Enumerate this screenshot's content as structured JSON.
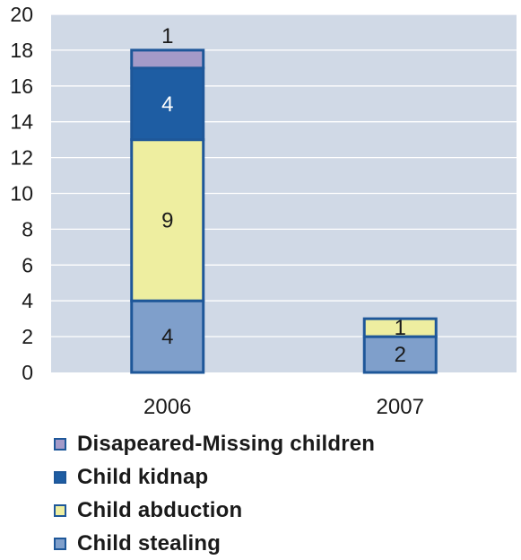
{
  "chart_data": {
    "type": "bar",
    "stacked": true,
    "categories": [
      "2006",
      "2007"
    ],
    "series": [
      {
        "name": "Child stealing",
        "values": [
          4,
          2
        ],
        "color": "#7f9fcb"
      },
      {
        "name": "Child abduction",
        "values": [
          9,
          1
        ],
        "color": "#eeeea0"
      },
      {
        "name": "Child kidnap",
        "values": [
          4,
          0
        ],
        "color": "#1e5da3"
      },
      {
        "name": "Disapeared-Missing children",
        "values": [
          1,
          0
        ],
        "color": "#a49ac8"
      }
    ],
    "data_labels": [
      {
        "category": "2006",
        "series": "Child stealing",
        "text": "4"
      },
      {
        "category": "2006",
        "series": "Child abduction",
        "text": "9"
      },
      {
        "category": "2006",
        "series": "Child kidnap",
        "text": "4"
      },
      {
        "category": "2006",
        "series": "Disapeared-Missing children",
        "text": "1"
      },
      {
        "category": "2007",
        "series": "Child stealing",
        "text": "2"
      },
      {
        "category": "2007",
        "series": "Child abduction",
        "text": "1"
      }
    ],
    "ylim": [
      0,
      20
    ],
    "yticks": [
      "0",
      "2",
      "4",
      "6",
      "8",
      "10",
      "12",
      "14",
      "16",
      "18",
      "20"
    ],
    "grid": true,
    "legend_position": "bottom",
    "legend": [
      "Disapeared-Missing children",
      "Child kidnap",
      "Child abduction",
      "Child stealing"
    ],
    "plot_background": "#d0d9e6",
    "bar_outline": "#1e5799",
    "gridline_color": "#ffffff"
  }
}
